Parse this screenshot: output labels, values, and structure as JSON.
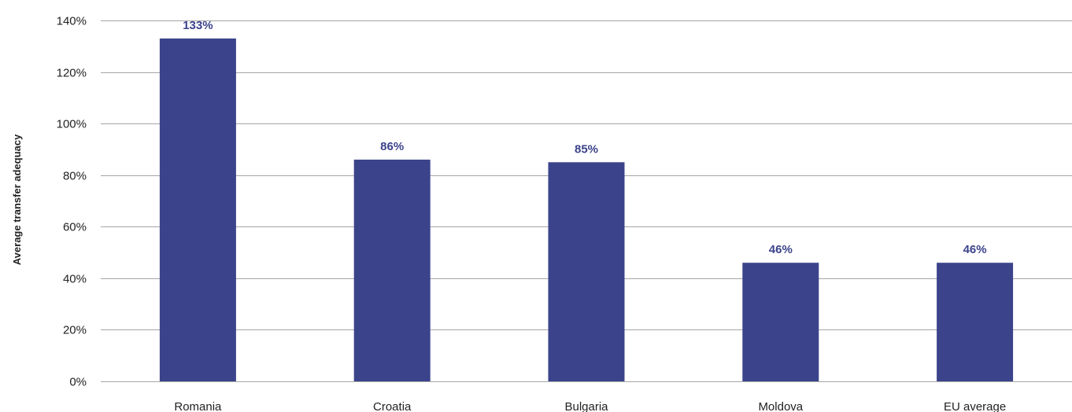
{
  "chart_data": {
    "type": "bar",
    "title": "",
    "xlabel": "",
    "ylabel": "Average transfer adequacy",
    "categories": [
      "Romania",
      "Croatia",
      "Bulgaria",
      "Moldova",
      "EU average"
    ],
    "values": [
      133,
      86,
      85,
      46,
      46
    ],
    "data_labels": [
      "133%",
      "86%",
      "85%",
      "46%",
      "46%"
    ],
    "ylim": [
      0,
      140
    ],
    "y_ticks": [
      0,
      20,
      40,
      60,
      80,
      100,
      120,
      140
    ],
    "y_tick_labels": [
      "0%",
      "20%",
      "40%",
      "60%",
      "80%",
      "100%",
      "120%",
      "140%"
    ],
    "grid": true,
    "legend": "none",
    "colors": {
      "bar": "#3b438b",
      "data_label": "#3b438b",
      "grid": "#a6a6a6"
    }
  }
}
